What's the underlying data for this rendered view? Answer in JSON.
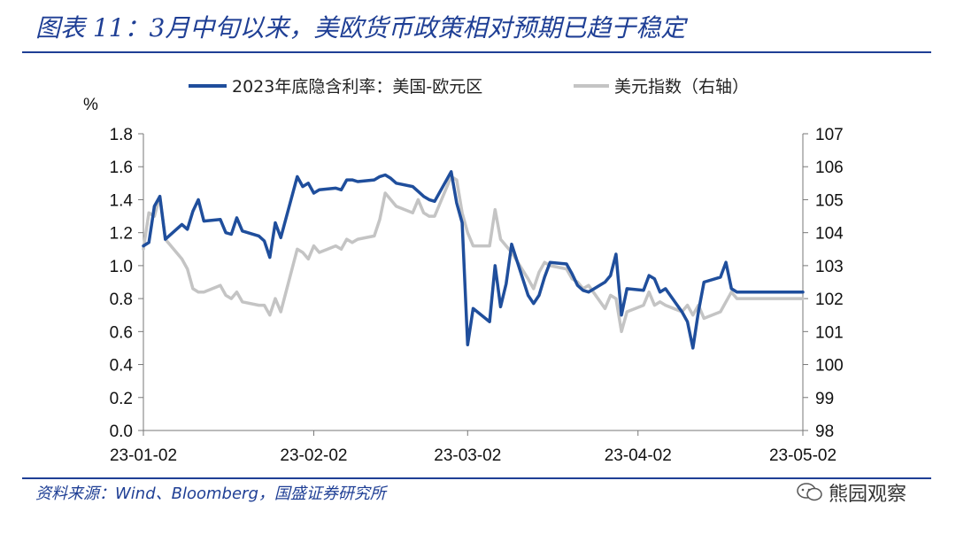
{
  "header": {
    "title": "图表 11：3月中旬以来，美欧货币政策相对预期已趋于稳定"
  },
  "footer": {
    "source": "资料来源：Wind、Bloomberg，国盛证券研究所",
    "watermark": "熊园观察"
  },
  "chart_data": {
    "type": "line",
    "left_unit": "%",
    "legend_position": "top",
    "x_tick_labels": [
      "23-01-02",
      "23-02-02",
      "23-03-02",
      "23-04-02",
      "23-05-02"
    ],
    "x_range": [
      "2023-01-02",
      "2023-05-02"
    ],
    "y_left": {
      "min": 0.0,
      "max": 1.8,
      "ticks": [
        "0.0",
        "0.2",
        "0.4",
        "0.6",
        "0.8",
        "1.0",
        "1.2",
        "1.4",
        "1.6",
        "1.8"
      ]
    },
    "y_right": {
      "min": 98,
      "max": 107,
      "ticks": [
        "98",
        "99",
        "100",
        "101",
        "102",
        "103",
        "104",
        "105",
        "106",
        "107"
      ]
    },
    "series": [
      {
        "name": "2023年底隐含利率：美国-欧元区",
        "axis": "left",
        "color": "#1f4e9c",
        "x": [
          "2023-01-02",
          "2023-01-03",
          "2023-01-04",
          "2023-01-05",
          "2023-01-06",
          "2023-01-09",
          "2023-01-10",
          "2023-01-11",
          "2023-01-12",
          "2023-01-13",
          "2023-01-16",
          "2023-01-17",
          "2023-01-18",
          "2023-01-19",
          "2023-01-20",
          "2023-01-23",
          "2023-01-24",
          "2023-01-25",
          "2023-01-26",
          "2023-01-27",
          "2023-01-30",
          "2023-01-31",
          "2023-02-01",
          "2023-02-02",
          "2023-02-03",
          "2023-02-06",
          "2023-02-07",
          "2023-02-08",
          "2023-02-09",
          "2023-02-10",
          "2023-02-13",
          "2023-02-14",
          "2023-02-15",
          "2023-02-16",
          "2023-02-17",
          "2023-02-20",
          "2023-02-21",
          "2023-02-22",
          "2023-02-23",
          "2023-02-24",
          "2023-02-27",
          "2023-02-28",
          "2023-03-01",
          "2023-03-02",
          "2023-03-03",
          "2023-03-06",
          "2023-03-07",
          "2023-03-08",
          "2023-03-09",
          "2023-03-10",
          "2023-03-13",
          "2023-03-14",
          "2023-03-15",
          "2023-03-16",
          "2023-03-17",
          "2023-03-20",
          "2023-03-21",
          "2023-03-22",
          "2023-03-23",
          "2023-03-24",
          "2023-03-27",
          "2023-03-28",
          "2023-03-29",
          "2023-03-30",
          "2023-03-31",
          "2023-04-03",
          "2023-04-04",
          "2023-04-05",
          "2023-04-06",
          "2023-04-07",
          "2023-04-10",
          "2023-04-11",
          "2023-04-12",
          "2023-04-13",
          "2023-04-14",
          "2023-04-17",
          "2023-04-18",
          "2023-04-19",
          "2023-04-20",
          "2023-04-21",
          "2023-04-24",
          "2023-04-25",
          "2023-04-26",
          "2023-04-27",
          "2023-04-28",
          "2023-05-01",
          "2023-05-02"
        ],
        "values": [
          1.12,
          1.14,
          1.36,
          1.42,
          1.16,
          1.25,
          1.22,
          1.33,
          1.4,
          1.27,
          1.28,
          1.2,
          1.19,
          1.29,
          1.21,
          1.18,
          1.15,
          1.05,
          1.26,
          1.17,
          1.54,
          1.48,
          1.5,
          1.44,
          1.46,
          1.47,
          1.46,
          1.52,
          1.52,
          1.51,
          1.52,
          1.54,
          1.55,
          1.53,
          1.5,
          1.48,
          1.45,
          1.42,
          1.4,
          1.39,
          1.57,
          1.38,
          1.26,
          0.52,
          0.74,
          0.66,
          1.0,
          0.75,
          0.89,
          1.13,
          0.82,
          0.77,
          0.82,
          0.93,
          1.02,
          1.01,
          0.95,
          0.88,
          0.85,
          0.84,
          0.9,
          0.94,
          1.07,
          0.7,
          0.86,
          0.85,
          0.94,
          0.92,
          0.84,
          0.86,
          0.72,
          0.66,
          0.5,
          0.72,
          0.9,
          0.93,
          1.02,
          0.86,
          0.84,
          0.84,
          0.84,
          0.84,
          0.84,
          0.84,
          0.84,
          0.84,
          0.84
        ]
      },
      {
        "name": "美元指数（右轴）",
        "axis": "right",
        "color": "#c4c4c4",
        "x": [
          "2023-01-02",
          "2023-01-03",
          "2023-01-04",
          "2023-01-05",
          "2023-01-06",
          "2023-01-09",
          "2023-01-10",
          "2023-01-11",
          "2023-01-12",
          "2023-01-13",
          "2023-01-16",
          "2023-01-17",
          "2023-01-18",
          "2023-01-19",
          "2023-01-20",
          "2023-01-23",
          "2023-01-24",
          "2023-01-25",
          "2023-01-26",
          "2023-01-27",
          "2023-01-30",
          "2023-01-31",
          "2023-02-01",
          "2023-02-02",
          "2023-02-03",
          "2023-02-06",
          "2023-02-07",
          "2023-02-08",
          "2023-02-09",
          "2023-02-10",
          "2023-02-13",
          "2023-02-14",
          "2023-02-15",
          "2023-02-16",
          "2023-02-17",
          "2023-02-20",
          "2023-02-21",
          "2023-02-22",
          "2023-02-23",
          "2023-02-24",
          "2023-02-27",
          "2023-02-28",
          "2023-03-01",
          "2023-03-02",
          "2023-03-03",
          "2023-03-06",
          "2023-03-07",
          "2023-03-08",
          "2023-03-09",
          "2023-03-10",
          "2023-03-13",
          "2023-03-14",
          "2023-03-15",
          "2023-03-16",
          "2023-03-17",
          "2023-03-20",
          "2023-03-21",
          "2023-03-22",
          "2023-03-23",
          "2023-03-24",
          "2023-03-27",
          "2023-03-28",
          "2023-03-29",
          "2023-03-30",
          "2023-03-31",
          "2023-04-03",
          "2023-04-04",
          "2023-04-05",
          "2023-04-06",
          "2023-04-07",
          "2023-04-10",
          "2023-04-11",
          "2023-04-12",
          "2023-04-13",
          "2023-04-14",
          "2023-04-17",
          "2023-04-18",
          "2023-04-19",
          "2023-04-20",
          "2023-04-21",
          "2023-04-24",
          "2023-04-25",
          "2023-04-26",
          "2023-04-27",
          "2023-04-28",
          "2023-05-01",
          "2023-05-02"
        ],
        "values": [
          103.5,
          104.6,
          104.5,
          105.1,
          103.8,
          103.2,
          102.9,
          102.3,
          102.2,
          102.2,
          102.4,
          102.1,
          102.0,
          102.2,
          101.9,
          101.8,
          101.8,
          101.5,
          102.0,
          101.6,
          103.5,
          103.4,
          103.2,
          103.6,
          103.4,
          103.6,
          103.5,
          103.8,
          103.7,
          103.8,
          103.9,
          104.4,
          105.2,
          105.0,
          104.8,
          104.6,
          105.0,
          104.6,
          104.5,
          104.5,
          105.7,
          105.6,
          104.6,
          104.0,
          103.6,
          103.6,
          104.7,
          103.8,
          103.6,
          103.4,
          102.6,
          102.3,
          102.8,
          103.1,
          103.0,
          102.9,
          102.6,
          102.5,
          102.3,
          102.4,
          101.7,
          102.1,
          102.0,
          101.0,
          101.6,
          101.8,
          102.2,
          101.8,
          101.9,
          101.8,
          101.6,
          101.8,
          101.5,
          101.8,
          101.4,
          101.6,
          101.9,
          102.2,
          102.0,
          102.0,
          102.0,
          102.0,
          102.0,
          102.0,
          102.0,
          102.0,
          102.0
        ]
      }
    ]
  }
}
